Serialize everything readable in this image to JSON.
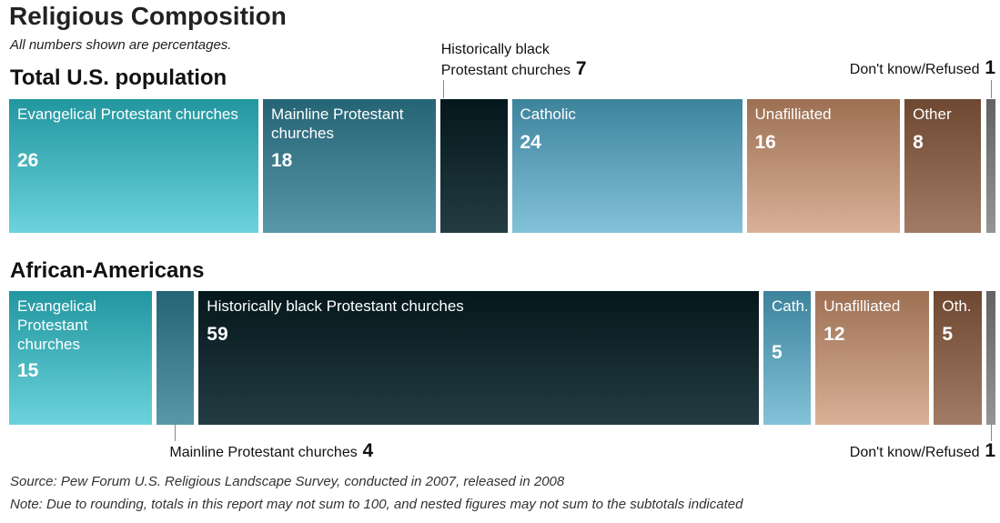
{
  "title": "Religious Composition",
  "subtitle": "All numbers shown are percentages.",
  "source": "Source: Pew Forum U.S. Religious Landscape Survey, conducted in 2007, released in 2008",
  "note": "Note: Due to rounding, totals in this report may not sum to 100, and nested figures may not sum to the subtotals indicated",
  "colors": {
    "evangelical": "#2bc0cc",
    "mainline": "#2e7d92",
    "black_protestant": "#052128",
    "catholic": "#4ea8c8",
    "unaffiliated": "#c9906a",
    "other": "#8a5a3c",
    "dont_know": "#7a7a7a"
  },
  "chart_data": [
    {
      "type": "bar",
      "subtype": "stacked-horizontal",
      "title": "Total U.S. population",
      "categories": [
        "Evangelical Protestant churches",
        "Mainline Protestant churches",
        "Historically black Protestant churches",
        "Catholic",
        "Unafilliated",
        "Other",
        "Don't know/Refused"
      ],
      "labels": [
        "Evangelical Protestant churches",
        "Mainline Protestant churches",
        "Historically black Protestant churches",
        "Catholic",
        "Unafilliated",
        "Other",
        "Don't know/Refused"
      ],
      "values": [
        26,
        18,
        7,
        24,
        16,
        8,
        1
      ],
      "value_labels": [
        "26",
        "18",
        "7",
        "24",
        "16",
        "8",
        "1"
      ]
    },
    {
      "type": "bar",
      "subtype": "stacked-horizontal",
      "title": "African-Americans",
      "categories": [
        "Evangelical Protestant churches",
        "Mainline Protestant churches",
        "Historically black Protestant churches",
        "Catholic",
        "Unafilliated",
        "Other",
        "Don't know/Refused"
      ],
      "labels": [
        "Evangelical Protestant churches",
        "Mainline Protestant churches",
        "Historically black Protestant churches",
        "Cath.",
        "Unafilliated",
        "Oth.",
        "Don't know/Refused"
      ],
      "values": [
        15,
        4,
        59,
        5,
        12,
        5,
        1
      ],
      "value_labels": [
        "15",
        "4",
        "59",
        "5",
        "12",
        "5",
        "1"
      ]
    }
  ]
}
